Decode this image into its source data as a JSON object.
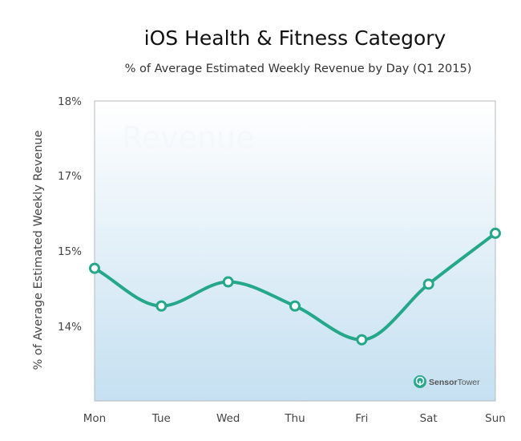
{
  "chart_data": {
    "type": "line",
    "title": "iOS Health & Fitness Category",
    "subtitle": "% of Average Estimated Weekly Revenue by Day (Q1 2015)",
    "ylabel": "% of Average Estimated Weekly Revenue",
    "xlabel": "",
    "categories": [
      "Mon",
      "Tue",
      "Wed",
      "Thu",
      "Fri",
      "Sat",
      "Sun"
    ],
    "series": [
      {
        "values": [
          14.77,
          14.27,
          14.59,
          14.27,
          13.82,
          14.56,
          15.47
        ]
      }
    ],
    "y_ticks": [
      {
        "value": 18,
        "label": "18%"
      },
      {
        "value": 17,
        "label": "17%"
      },
      {
        "value": 15,
        "label": "15%"
      },
      {
        "value": 14,
        "label": "14%"
      }
    ],
    "ylim": [
      13,
      18
    ],
    "grid": false,
    "watermark": "Revenue",
    "source_logo": {
      "brand": "Sensor",
      "brand_suffix": "Tower"
    },
    "colors": {
      "line": "#25a78a",
      "marker_fill": "#ffffff",
      "plot_top": "#ffffff",
      "plot_bottom": "#c5e0f1",
      "axis": "#b9b9b9"
    }
  }
}
